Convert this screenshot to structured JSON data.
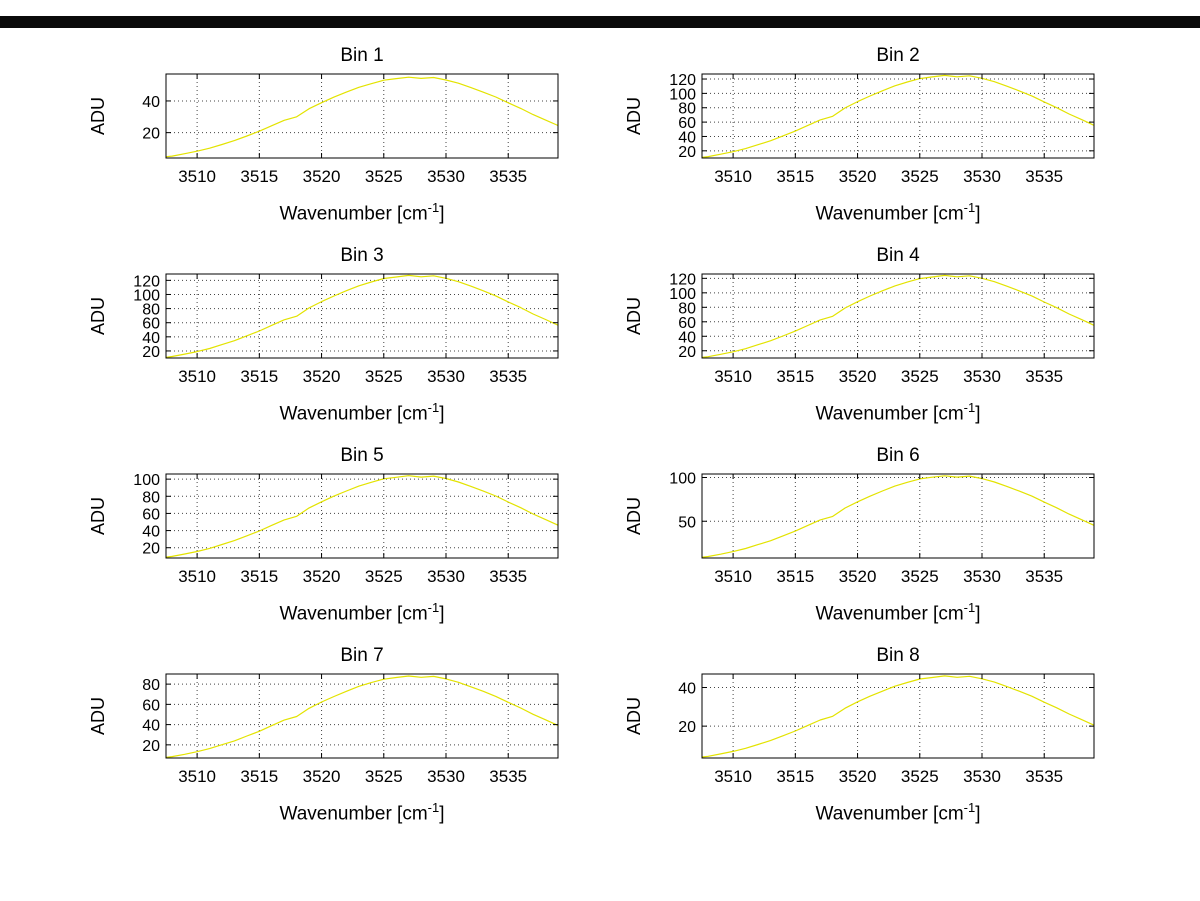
{
  "window": {
    "top_strip_color": "#0a0a0a"
  },
  "chart_data": {
    "type": "line",
    "grid": true,
    "line_color": "#e3e300",
    "grid_color": "#444444",
    "axis_color": "#000000",
    "ylabel": "ADU",
    "xlabel": {
      "prefix": "Wavenumber [cm",
      "sup": "-1",
      "suffix": "]"
    },
    "xlim": [
      3507.5,
      3539
    ],
    "xticks": [
      3510,
      3515,
      3520,
      3525,
      3530,
      3535
    ],
    "x": [
      3507.5,
      3508,
      3509,
      3510,
      3511,
      3512,
      3513,
      3514,
      3515,
      3516,
      3517,
      3518,
      3519,
      3520,
      3521,
      3522,
      3523,
      3524,
      3525,
      3526,
      3527,
      3528,
      3529,
      3530,
      3531,
      3532,
      3533,
      3534,
      3535,
      3536,
      3537,
      3538,
      3539
    ],
    "plots": [
      {
        "title": "Bin 1",
        "ylim": [
          4,
          57
        ],
        "yticks": [
          20,
          40
        ],
        "values": [
          4.8,
          5.2,
          6.7,
          8.3,
          10.2,
          12.5,
          15.0,
          17.9,
          20.9,
          24.4,
          27.8,
          30.0,
          35.1,
          38.9,
          42.4,
          45.6,
          48.6,
          50.9,
          53.1,
          54.1,
          55.0,
          54.2,
          54.8,
          53.2,
          51.2,
          48.4,
          45.5,
          42.5,
          38.8,
          35.3,
          31.4,
          27.9,
          24.5
        ]
      },
      {
        "title": "Bin 2",
        "ylim": [
          10,
          127
        ],
        "yticks": [
          20,
          40,
          60,
          80,
          100,
          120
        ],
        "values": [
          10.9,
          11.9,
          15.3,
          18.8,
          23.1,
          28.5,
          34.0,
          40.8,
          47.5,
          55.4,
          63.1,
          68.1,
          79.8,
          88.5,
          96.4,
          103.6,
          110.5,
          115.8,
          120.6,
          122.9,
          125.0,
          123.1,
          124.5,
          121.0,
          116.3,
          110.0,
          103.5,
          96.5,
          88.1,
          80.1,
          71.3,
          63.5,
          55.6
        ]
      },
      {
        "title": "Bin 3",
        "ylim": [
          10,
          129
        ],
        "yticks": [
          20,
          40,
          60,
          80,
          100,
          120
        ],
        "values": [
          11.0,
          12.1,
          15.5,
          19.1,
          23.5,
          29.0,
          34.5,
          41.4,
          48.3,
          56.3,
          64.1,
          69.2,
          81.0,
          89.9,
          97.9,
          105.3,
          112.3,
          117.6,
          122.6,
          124.8,
          127.0,
          125.1,
          126.5,
          122.9,
          118.1,
          111.8,
          105.2,
          98.0,
          89.5,
          81.4,
          72.4,
          64.5,
          56.5
        ]
      },
      {
        "title": "Bin 4",
        "ylim": [
          10,
          126
        ],
        "yticks": [
          20,
          40,
          60,
          80,
          100,
          120
        ],
        "values": [
          10.8,
          11.8,
          15.1,
          18.6,
          22.9,
          28.3,
          33.7,
          40.4,
          47.1,
          54.9,
          62.6,
          67.6,
          79.1,
          87.8,
          95.6,
          102.8,
          109.6,
          114.8,
          119.7,
          121.9,
          124.0,
          122.1,
          123.5,
          120.0,
          115.3,
          109.1,
          102.7,
          95.7,
          87.4,
          79.4,
          70.7,
          63.0,
          55.2
        ]
      },
      {
        "title": "Bin 5",
        "ylim": [
          8,
          106
        ],
        "yticks": [
          20,
          40,
          60,
          80,
          100
        ],
        "values": [
          9.0,
          9.9,
          12.7,
          15.6,
          19.2,
          23.7,
          28.3,
          33.9,
          39.5,
          46.1,
          52.5,
          56.7,
          66.4,
          73.6,
          80.2,
          86.2,
          91.9,
          96.3,
          100.4,
          102.2,
          104.0,
          102.4,
          103.6,
          100.7,
          96.7,
          91.5,
          86.1,
          80.3,
          73.3,
          66.7,
          59.3,
          52.8,
          46.3
        ]
      },
      {
        "title": "Bin 6",
        "ylim": [
          8,
          104
        ],
        "yticks": [
          50,
          100
        ],
        "values": [
          8.9,
          9.7,
          12.4,
          15.3,
          18.9,
          23.3,
          27.7,
          33.3,
          38.8,
          45.2,
          51.5,
          55.6,
          65.1,
          72.2,
          78.6,
          84.6,
          90.2,
          94.5,
          98.4,
          100.3,
          102.0,
          100.5,
          101.6,
          98.7,
          94.9,
          89.8,
          84.5,
          78.7,
          71.9,
          65.4,
          58.2,
          51.8,
          45.4
        ]
      },
      {
        "title": "Bin 7",
        "ylim": [
          7,
          90
        ],
        "yticks": [
          20,
          40,
          60,
          80
        ],
        "values": [
          7.7,
          8.4,
          10.7,
          13.2,
          16.3,
          20.1,
          23.9,
          28.7,
          33.4,
          39.0,
          44.4,
          48.0,
          56.1,
          62.3,
          67.8,
          72.9,
          77.8,
          81.5,
          84.9,
          86.5,
          88.0,
          86.7,
          87.6,
          85.2,
          81.8,
          77.4,
          72.9,
          67.9,
          62.0,
          56.4,
          50.2,
          44.7,
          39.2
        ]
      },
      {
        "title": "Bin 8",
        "ylim": [
          3.5,
          47
        ],
        "yticks": [
          20,
          40
        ],
        "values": [
          4.0,
          4.4,
          5.6,
          6.9,
          8.5,
          10.5,
          12.5,
          15.0,
          17.5,
          20.4,
          23.2,
          25.1,
          29.3,
          32.6,
          35.5,
          38.1,
          40.7,
          42.6,
          44.4,
          45.2,
          46.0,
          45.3,
          45.8,
          44.5,
          42.8,
          40.5,
          38.1,
          35.5,
          32.4,
          29.5,
          26.3,
          23.4,
          20.5
        ]
      }
    ]
  }
}
